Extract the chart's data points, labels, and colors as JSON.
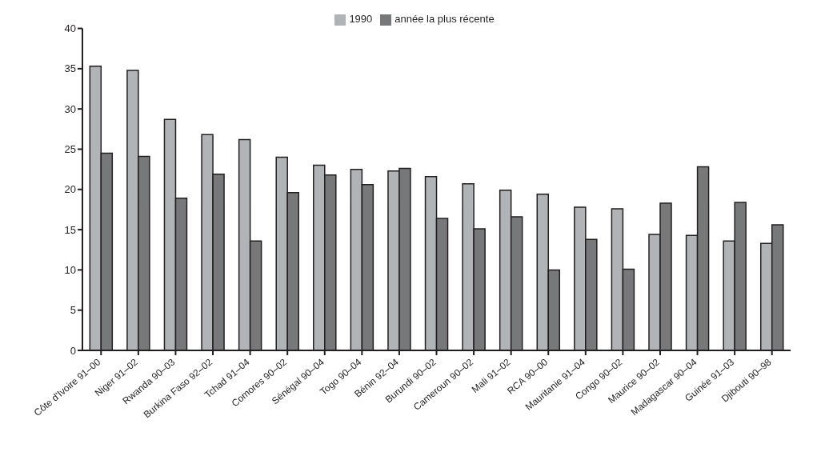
{
  "chart_data": {
    "type": "bar",
    "categories": [
      "Côte d'Ivoire 91–00",
      "Niger 91–02",
      "Rwanda 90–03",
      "Burkina Faso 92–02",
      "Tchad 91–04",
      "Comores 90–02",
      "Sénégal 90–04",
      "Togo 90–04",
      "Bénin 92–04",
      "Burundi 90–02",
      "Cameroun 90–02",
      "Mali 91–02",
      "RCA 90–00",
      "Mauritanie 91–04",
      "Congo 90–02",
      "Maurice 90–02",
      "Madagascar 90–04",
      "Guinée 91–03",
      "Djibouti 90–98"
    ],
    "series": [
      {
        "name": "1990",
        "color": "#b1b4b7",
        "values": [
          35.3,
          34.8,
          28.7,
          26.8,
          26.2,
          24.0,
          23.0,
          22.5,
          22.3,
          21.6,
          20.7,
          19.9,
          19.4,
          17.8,
          17.6,
          14.4,
          14.3,
          13.6,
          13.3
        ]
      },
      {
        "name": "année la plus récente",
        "color": "#77787a",
        "values": [
          24.5,
          24.1,
          18.9,
          21.9,
          13.6,
          19.6,
          21.8,
          20.6,
          22.6,
          16.4,
          15.1,
          16.6,
          10.0,
          13.8,
          10.1,
          18.3,
          22.8,
          18.4,
          15.6
        ]
      }
    ],
    "ylim": [
      0,
      40
    ],
    "yticks": [
      0,
      5,
      10,
      15,
      20,
      25,
      30,
      35,
      40
    ],
    "legend": "top",
    "grid": false
  }
}
